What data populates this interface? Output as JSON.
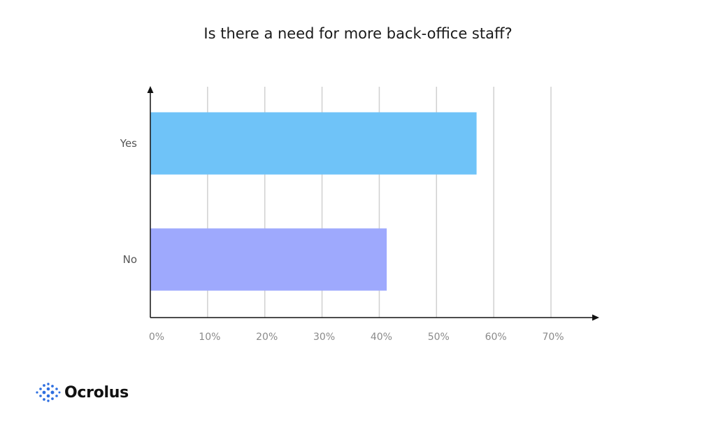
{
  "chart_data": {
    "type": "bar",
    "orientation": "horizontal",
    "title": "Is there a need for more back-office staff?",
    "categories": [
      "Yes",
      "No"
    ],
    "values": [
      57,
      41.3
    ],
    "colors": [
      "#6fc3f8",
      "#9ea9fd"
    ],
    "xlim": [
      0,
      70
    ],
    "x_ticks": [
      0,
      10,
      20,
      30,
      40,
      50,
      60,
      70
    ],
    "x_tick_labels": [
      "0%",
      "10%",
      "20%",
      "30%",
      "40%",
      "50%",
      "60%",
      "70%"
    ],
    "xlabel": "",
    "ylabel": "",
    "grid": true
  },
  "logo": {
    "text": "Ocrolus",
    "icon": "ocrolus-dots-icon",
    "color": "#2e6fe0"
  }
}
